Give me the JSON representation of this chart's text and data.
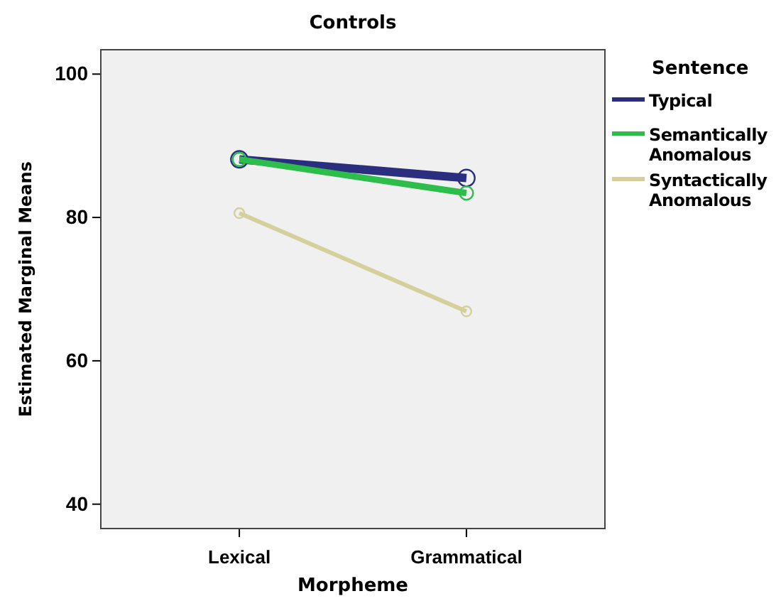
{
  "chart_data": {
    "type": "line",
    "title": "Controls",
    "xlabel": "Morpheme",
    "ylabel": "Estimated Marginal Means",
    "legend_title": "Sentence",
    "categories": [
      "Lexical",
      "Grammatical"
    ],
    "series": [
      {
        "name": "Typical",
        "color": "#2b2d7e",
        "values": [
          88.1,
          85.5
        ]
      },
      {
        "name": "Semantically Anomalous",
        "color": "#2cbd4a",
        "values": [
          88.1,
          83.4
        ]
      },
      {
        "name": "Syntactically Anomalous",
        "color": "#d5cf9c",
        "values": [
          80.6,
          66.9
        ]
      }
    ],
    "ylim": [
      36.6,
      103.4
    ],
    "yticks": [
      40,
      60,
      80,
      100
    ],
    "grid": false,
    "legend": "right",
    "marker": "circle"
  }
}
